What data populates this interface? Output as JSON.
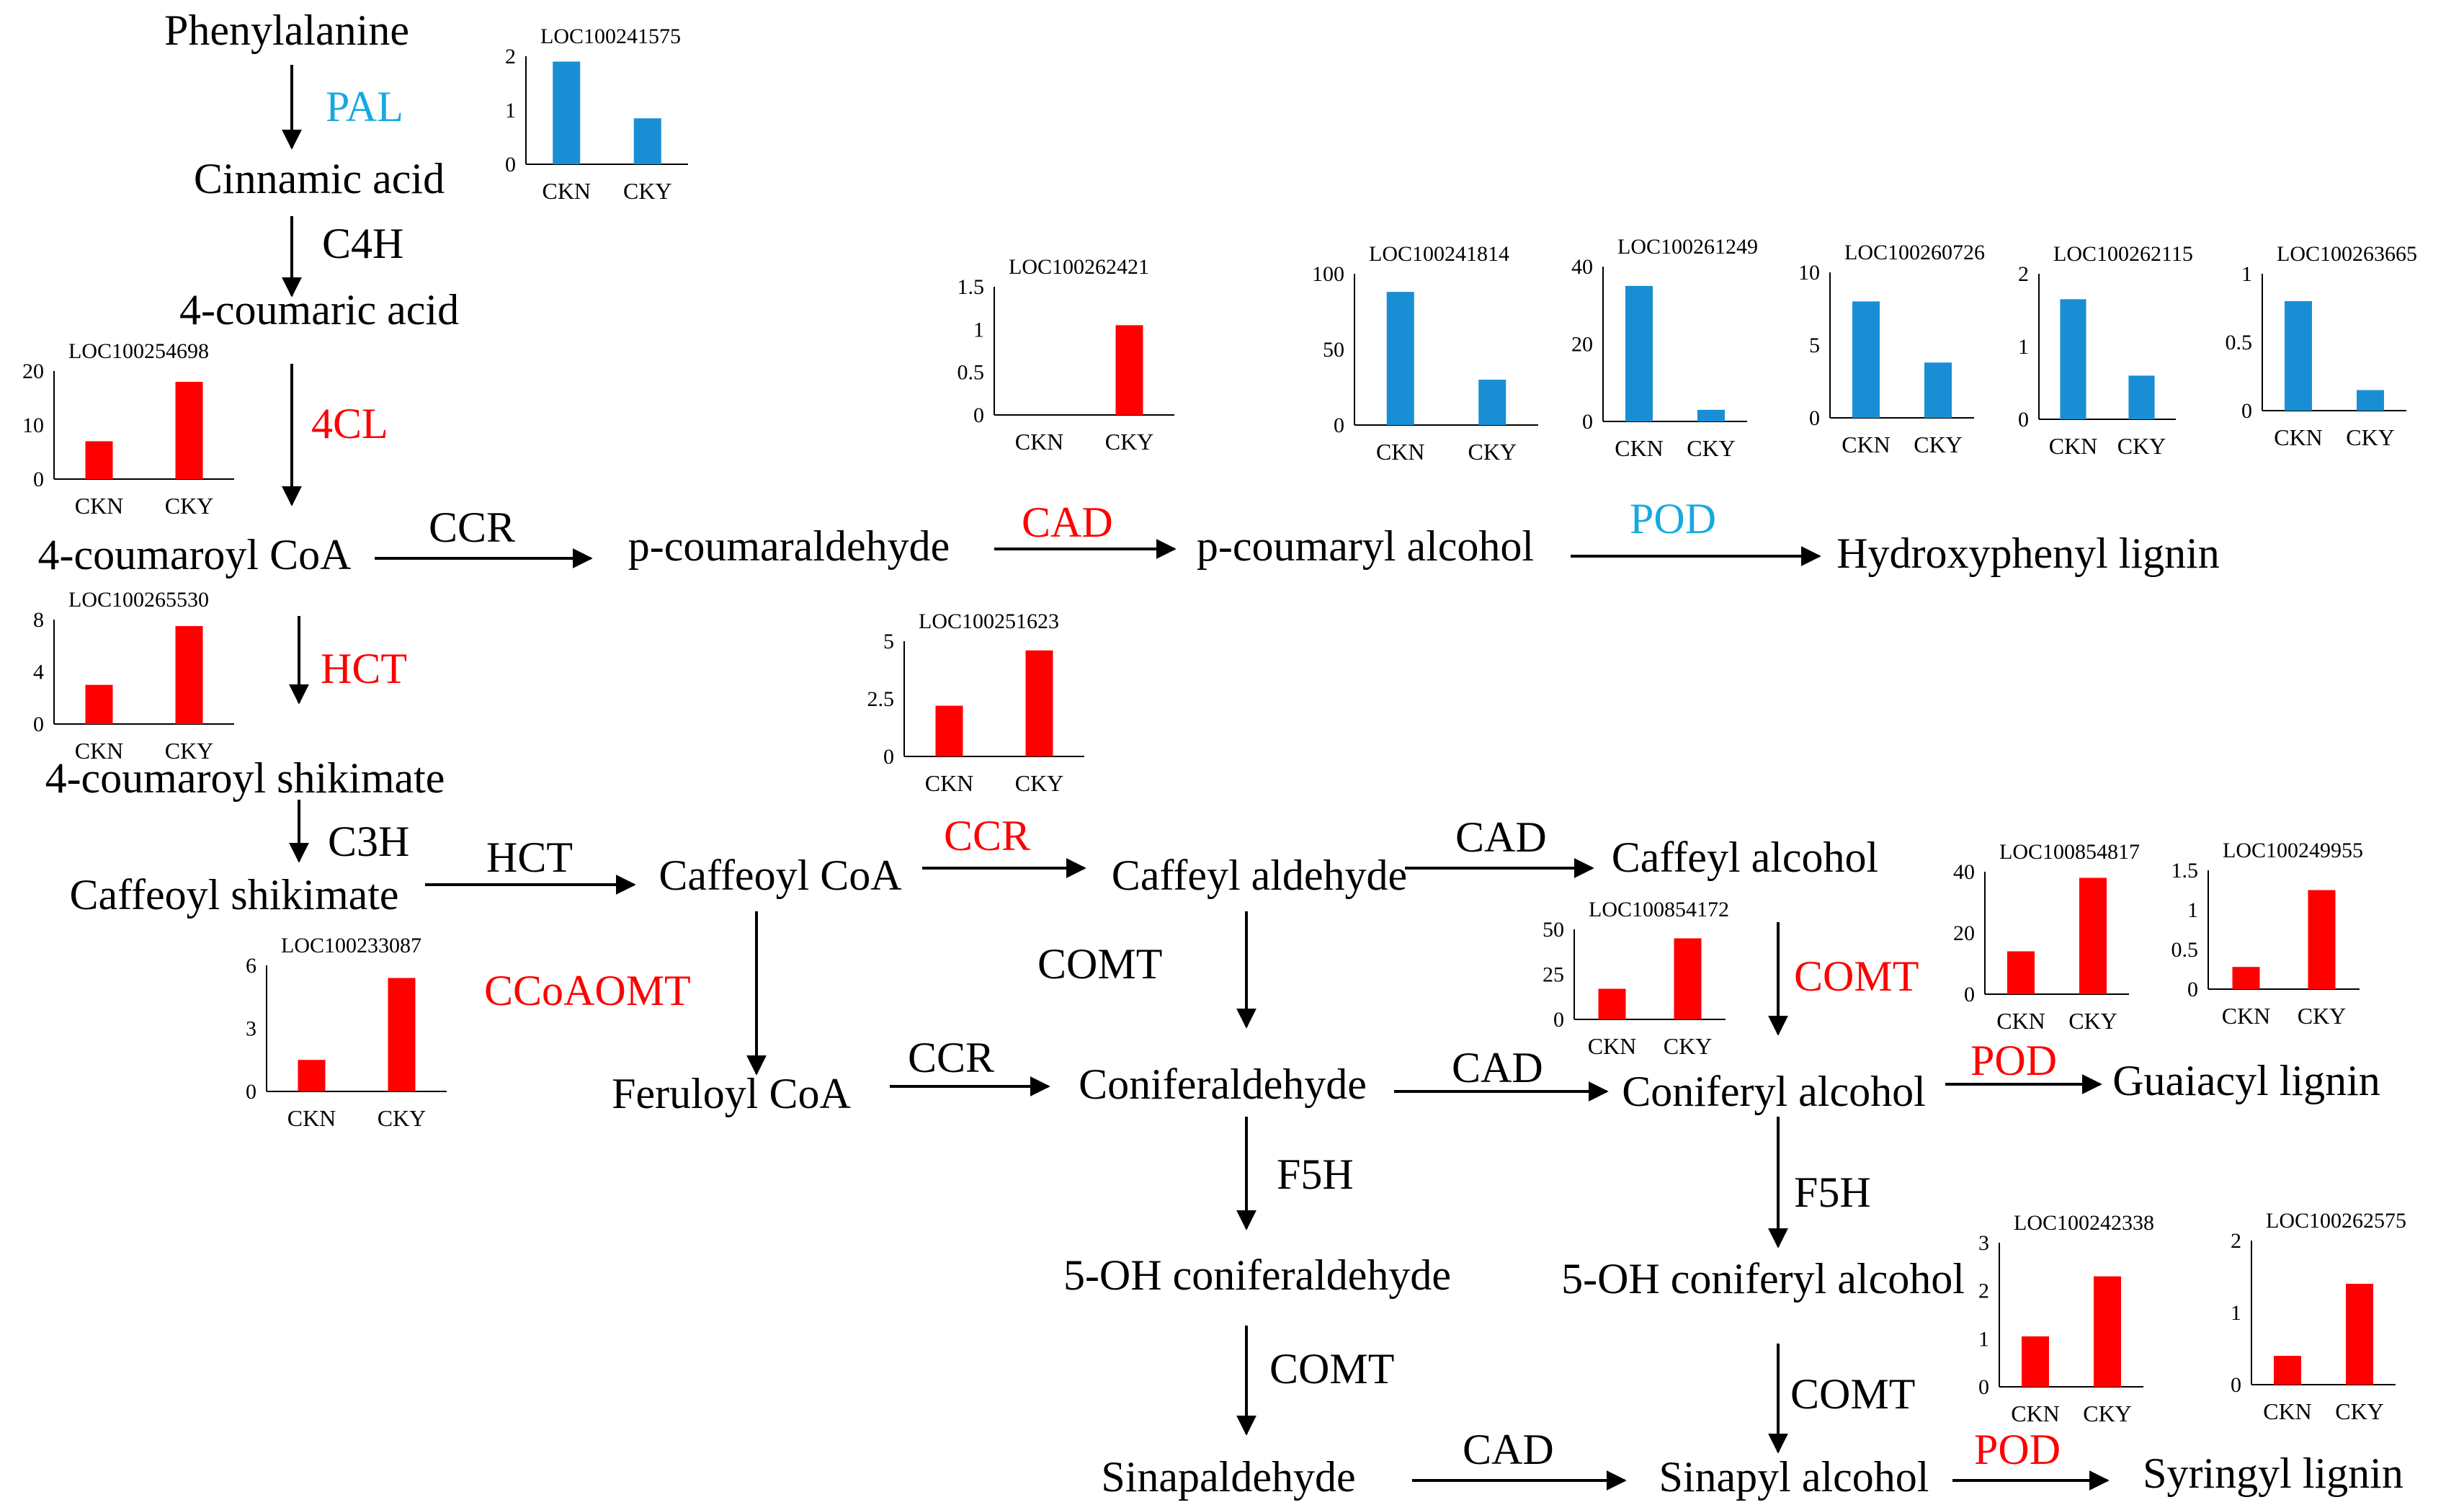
{
  "colors": {
    "up": "#ff0000",
    "down": "#1a8ed4",
    "neutral": "#000000",
    "enzyme_blue": "#16a9e0"
  },
  "compounds": [
    {
      "id": "phe",
      "label": "Phenylalanine"
    },
    {
      "id": "cin",
      "label": "Cinnamic acid"
    },
    {
      "id": "cou",
      "label": "4-coumaric acid"
    },
    {
      "id": "coucoa",
      "label": "4-coumaroyl CoA"
    },
    {
      "id": "pcald",
      "label": "p-coumaraldehyde"
    },
    {
      "id": "pcalc",
      "label": "p-coumaryl alcohol"
    },
    {
      "id": "hlig",
      "label": "Hydroxyphenyl lignin"
    },
    {
      "id": "cshk",
      "label": "4-coumaroyl shikimate"
    },
    {
      "id": "cafshk",
      "label": "Caffeoyl shikimate"
    },
    {
      "id": "cafcoa",
      "label": "Caffeoyl CoA"
    },
    {
      "id": "cafald",
      "label": "Caffeyl aldehyde"
    },
    {
      "id": "cafalc",
      "label": "Caffeyl alcohol"
    },
    {
      "id": "fercoa",
      "label": "Feruloyl CoA"
    },
    {
      "id": "conald",
      "label": "Coniferaldehyde"
    },
    {
      "id": "conalc",
      "label": "Coniferyl alcohol"
    },
    {
      "id": "glig",
      "label": "Guaiacyl lignin"
    },
    {
      "id": "ohconald",
      "label": "5-OH coniferaldehyde"
    },
    {
      "id": "ohconalc",
      "label": "5-OH coniferyl alcohol"
    },
    {
      "id": "sinald",
      "label": "Sinapaldehyde"
    },
    {
      "id": "sinalc",
      "label": "Sinapyl alcohol"
    },
    {
      "id": "slig",
      "label": "Syringyl lignin"
    }
  ],
  "enzymes": [
    {
      "id": "e1",
      "label": "PAL",
      "regulation": "down"
    },
    {
      "id": "e2",
      "label": "C4H",
      "regulation": "none"
    },
    {
      "id": "e3",
      "label": "4CL",
      "regulation": "up"
    },
    {
      "id": "e4",
      "label": "CCR",
      "regulation": "none"
    },
    {
      "id": "e5",
      "label": "CAD",
      "regulation": "up"
    },
    {
      "id": "e6",
      "label": "POD",
      "regulation": "down"
    },
    {
      "id": "e7",
      "label": "HCT",
      "regulation": "up"
    },
    {
      "id": "e8",
      "label": "C3H",
      "regulation": "none"
    },
    {
      "id": "e9",
      "label": "HCT",
      "regulation": "none"
    },
    {
      "id": "e10",
      "label": "CCR",
      "regulation": "up"
    },
    {
      "id": "e11",
      "label": "CAD",
      "regulation": "none"
    },
    {
      "id": "e12",
      "label": "CCoAOMT",
      "regulation": "up"
    },
    {
      "id": "e13",
      "label": "COMT",
      "regulation": "none"
    },
    {
      "id": "e14",
      "label": "COMT",
      "regulation": "up"
    },
    {
      "id": "e15",
      "label": "CCR",
      "regulation": "none"
    },
    {
      "id": "e16",
      "label": "CAD",
      "regulation": "none"
    },
    {
      "id": "e17",
      "label": "POD",
      "regulation": "up"
    },
    {
      "id": "e18",
      "label": "F5H",
      "regulation": "none"
    },
    {
      "id": "e19",
      "label": "F5H",
      "regulation": "none"
    },
    {
      "id": "e20",
      "label": "COMT",
      "regulation": "none"
    },
    {
      "id": "e21",
      "label": "COMT",
      "regulation": "none"
    },
    {
      "id": "e22",
      "label": "CAD",
      "regulation": "none"
    },
    {
      "id": "e23",
      "label": "POD",
      "regulation": "up"
    }
  ],
  "chart_data": [
    {
      "type": "bar",
      "title": "LOC100241575",
      "categories": [
        "CKN",
        "CKY"
      ],
      "values": [
        1.9,
        0.85
      ],
      "ylim": [
        0,
        2
      ],
      "yticks": [
        0,
        1,
        2
      ],
      "regulation": "down"
    },
    {
      "type": "bar",
      "title": "LOC100254698",
      "categories": [
        "CKN",
        "CKY"
      ],
      "values": [
        7,
        18
      ],
      "ylim": [
        0,
        20
      ],
      "yticks": [
        0,
        10,
        20
      ],
      "regulation": "up"
    },
    {
      "type": "bar",
      "title": "LOC100265530",
      "categories": [
        "CKN",
        "CKY"
      ],
      "values": [
        3,
        7.5
      ],
      "ylim": [
        0,
        8
      ],
      "yticks": [
        0,
        4,
        8
      ],
      "regulation": "up"
    },
    {
      "type": "bar",
      "title": "LOC100233087",
      "categories": [
        "CKN",
        "CKY"
      ],
      "values": [
        1.5,
        5.4
      ],
      "ylim": [
        0,
        6
      ],
      "yticks": [
        0,
        3,
        6
      ],
      "regulation": "up"
    },
    {
      "type": "bar",
      "title": "LOC100262421",
      "categories": [
        "CKN",
        "CKY"
      ],
      "values": [
        0,
        1.05
      ],
      "ylim": [
        0,
        1.5
      ],
      "yticks": [
        "0",
        "0.5",
        "1",
        "1.5"
      ],
      "regulation": "up"
    },
    {
      "type": "bar",
      "title": "LOC100251623",
      "categories": [
        "CKN",
        "CKY"
      ],
      "values": [
        2.2,
        4.6
      ],
      "ylim": [
        0,
        5
      ],
      "yticks": [
        "0",
        "2.5",
        "5"
      ],
      "regulation": "up"
    },
    {
      "type": "bar",
      "title": "LOC100241814",
      "categories": [
        "CKN",
        "CKY"
      ],
      "values": [
        88,
        30
      ],
      "ylim": [
        0,
        100
      ],
      "yticks": [
        0,
        50,
        100
      ],
      "regulation": "down"
    },
    {
      "type": "bar",
      "title": "LOC100261249",
      "categories": [
        "CKN",
        "CKY"
      ],
      "values": [
        35,
        3
      ],
      "ylim": [
        0,
        40
      ],
      "yticks": [
        0,
        20,
        40
      ],
      "regulation": "down"
    },
    {
      "type": "bar",
      "title": "LOC100260726",
      "categories": [
        "CKN",
        "CKY"
      ],
      "values": [
        8,
        3.8
      ],
      "ylim": [
        0,
        10
      ],
      "yticks": [
        0,
        5,
        10
      ],
      "regulation": "down"
    },
    {
      "type": "bar",
      "title": "LOC100262115",
      "categories": [
        "CKN",
        "CKY"
      ],
      "values": [
        1.65,
        0.6
      ],
      "ylim": [
        0,
        2
      ],
      "yticks": [
        0,
        1,
        2
      ],
      "regulation": "down"
    },
    {
      "type": "bar",
      "title": "LOC100263665",
      "categories": [
        "CKN",
        "CKY"
      ],
      "values": [
        0.8,
        0.15
      ],
      "ylim": [
        0,
        1
      ],
      "yticks": [
        "0",
        "0.5",
        "1"
      ],
      "regulation": "down"
    },
    {
      "type": "bar",
      "title": "LOC100854172",
      "categories": [
        "CKN",
        "CKY"
      ],
      "values": [
        17,
        45
      ],
      "ylim": [
        0,
        50
      ],
      "yticks": [
        0,
        25,
        50
      ],
      "regulation": "up"
    },
    {
      "type": "bar",
      "title": "LOC100854817",
      "categories": [
        "CKN",
        "CKY"
      ],
      "values": [
        14,
        38
      ],
      "ylim": [
        0,
        40
      ],
      "yticks": [
        0,
        20,
        40
      ],
      "regulation": "up"
    },
    {
      "type": "bar",
      "title": "LOC100249955",
      "categories": [
        "CKN",
        "CKY"
      ],
      "values": [
        0.28,
        1.25
      ],
      "ylim": [
        0,
        1.5
      ],
      "yticks": [
        "0",
        "0.5",
        "1",
        "1.5"
      ],
      "regulation": "up"
    },
    {
      "type": "bar",
      "title": "LOC100242338",
      "categories": [
        "CKN",
        "CKY"
      ],
      "values": [
        1.05,
        2.3
      ],
      "ylim": [
        0,
        3
      ],
      "yticks": [
        0,
        1,
        2,
        3
      ],
      "regulation": "up"
    },
    {
      "type": "bar",
      "title": "LOC100262575",
      "categories": [
        "CKN",
        "CKY"
      ],
      "values": [
        0.4,
        1.4
      ],
      "ylim": [
        0,
        2
      ],
      "yticks": [
        0,
        1,
        2
      ],
      "regulation": "up"
    }
  ]
}
